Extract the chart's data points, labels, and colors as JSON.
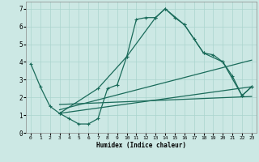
{
  "xlabel": "Humidex (Indice chaleur)",
  "background_color": "#cce8e4",
  "line_color": "#1a6b5a",
  "grid_color": "#aad4ce",
  "xlim": [
    -0.5,
    23.5
  ],
  "ylim": [
    0,
    7.4
  ],
  "xticks": [
    0,
    1,
    2,
    3,
    4,
    5,
    6,
    7,
    8,
    9,
    10,
    11,
    12,
    13,
    14,
    15,
    16,
    17,
    18,
    19,
    20,
    21,
    22,
    23
  ],
  "yticks": [
    0,
    1,
    2,
    3,
    4,
    5,
    6,
    7
  ],
  "line1_x": [
    0,
    1,
    2,
    3,
    4,
    5,
    6,
    7,
    8,
    9,
    10,
    11,
    12,
    13,
    14,
    15,
    16,
    17,
    18,
    19,
    20,
    21,
    22,
    23
  ],
  "line1_y": [
    3.9,
    2.6,
    1.5,
    1.1,
    0.8,
    0.5,
    0.5,
    0.8,
    2.5,
    2.7,
    4.3,
    6.4,
    6.5,
    6.5,
    7.0,
    6.5,
    6.1,
    5.3,
    4.5,
    4.4,
    4.0,
    3.2,
    2.1,
    2.6
  ],
  "line2_x": [
    3,
    7,
    10,
    13,
    14,
    16,
    18,
    20,
    22,
    23
  ],
  "line2_y": [
    1.1,
    2.5,
    4.3,
    6.5,
    7.0,
    6.1,
    4.5,
    4.0,
    2.1,
    2.6
  ],
  "line3_x": [
    3,
    23
  ],
  "line3_y": [
    1.1,
    2.6
  ],
  "line4_x": [
    3,
    23
  ],
  "line4_y": [
    1.3,
    4.1
  ],
  "line5_x": [
    3,
    23
  ],
  "line5_y": [
    1.6,
    2.05
  ]
}
